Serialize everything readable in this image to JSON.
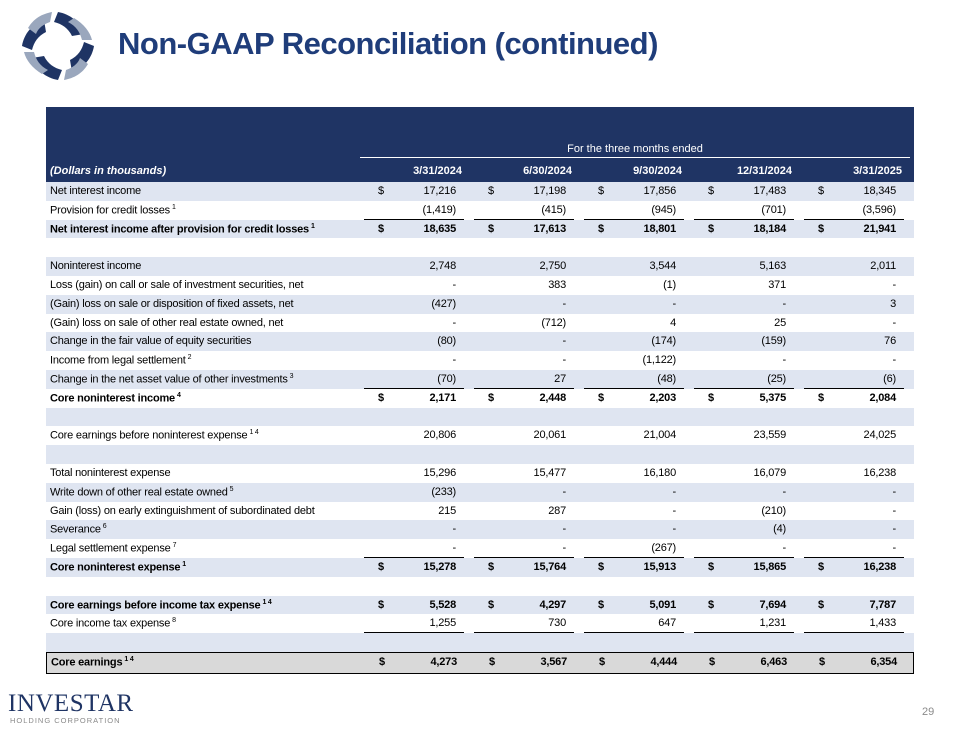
{
  "header": {
    "title": "Non-GAAP Reconciliation (continued)"
  },
  "table": {
    "period_header": "For the three months ended",
    "unit_label": "(Dollars in thousands)",
    "columns": [
      "3/31/2024",
      "6/30/2024",
      "9/30/2024",
      "12/31/2024",
      "3/31/2025"
    ],
    "sections": [
      {
        "rows": [
          {
            "label": "Net interest income",
            "currency": "$",
            "values": [
              "17,216",
              "17,198",
              "17,856",
              "17,483",
              "18,345"
            ]
          },
          {
            "label": "Provision for credit losses",
            "note": "1",
            "values": [
              "(1,419)",
              "(415)",
              "(945)",
              "(701)",
              "(3,596)"
            ]
          },
          {
            "label": "Net interest income after provision for credit losses",
            "note": "1",
            "bold": true,
            "currency": "$",
            "values": [
              "18,635",
              "17,613",
              "18,801",
              "18,184",
              "21,941"
            ]
          }
        ]
      },
      {
        "rows": [
          {
            "label": "Noninterest income",
            "values": [
              "2,748",
              "2,750",
              "3,544",
              "5,163",
              "2,011"
            ]
          },
          {
            "label": "Loss (gain) on call or sale of investment securities, net",
            "values": [
              "-",
              "383",
              "(1)",
              "371",
              "-"
            ]
          },
          {
            "label": "(Gain) loss on sale or disposition of fixed assets, net",
            "values": [
              "(427)",
              "-",
              "-",
              "-",
              "3"
            ]
          },
          {
            "label": "(Gain) loss on sale of other real estate owned, net",
            "values": [
              "-",
              "(712)",
              "4",
              "25",
              "-"
            ]
          },
          {
            "label": "Change in the fair value of equity securities",
            "values": [
              "(80)",
              "-",
              "(174)",
              "(159)",
              "76"
            ]
          },
          {
            "label": "Income from legal settlement",
            "note": "2",
            "values": [
              "-",
              "-",
              "(1,122)",
              "-",
              "-"
            ]
          },
          {
            "label": "Change in the net asset value of other investments",
            "note": "3",
            "values": [
              "(70)",
              "27",
              "(48)",
              "(25)",
              "(6)"
            ]
          },
          {
            "label": "Core noninterest income",
            "note": "4",
            "bold": true,
            "currency": "$",
            "values": [
              "2,171",
              "2,448",
              "2,203",
              "5,375",
              "2,084"
            ]
          }
        ]
      },
      {
        "rows": [
          {
            "label": "Core earnings before noninterest expense",
            "note": "1 4",
            "values": [
              "20,806",
              "20,061",
              "21,004",
              "23,559",
              "24,025"
            ]
          }
        ]
      },
      {
        "rows": [
          {
            "label": "Total noninterest expense",
            "values": [
              "15,296",
              "15,477",
              "16,180",
              "16,079",
              "16,238"
            ]
          },
          {
            "label": "Write down of other real estate owned",
            "note": "5",
            "values": [
              "(233)",
              "-",
              "-",
              "-",
              "-"
            ]
          },
          {
            "label": "Gain (loss) on early extinguishment of subordinated debt",
            "values": [
              "215",
              "287",
              "-",
              "(210)",
              "-"
            ]
          },
          {
            "label": "Severance",
            "note": "6",
            "values": [
              "-",
              "-",
              "-",
              "(4)",
              "-"
            ]
          },
          {
            "label": "Legal settlement expense",
            "note": "7",
            "values": [
              "-",
              "-",
              "(267)",
              "-",
              "-"
            ]
          },
          {
            "label": "Core noninterest expense",
            "note": "1",
            "bold": true,
            "currency": "$",
            "values": [
              "15,278",
              "15,764",
              "15,913",
              "15,865",
              "16,238"
            ]
          }
        ]
      },
      {
        "rows": [
          {
            "label": "Core earnings before income tax expense",
            "note": "1 4",
            "bold": true,
            "currency": "$",
            "values": [
              "5,528",
              "4,297",
              "5,091",
              "7,694",
              "7,787"
            ]
          },
          {
            "label": "Core income tax expense",
            "note": "8",
            "values": [
              "1,255",
              "730",
              "647",
              "1,231",
              "1,433"
            ]
          }
        ]
      },
      {
        "boxed": true,
        "rows": [
          {
            "label": "Core earnings",
            "note": "1 4",
            "bold": true,
            "currency": "$",
            "values": [
              "4,273",
              "3,567",
              "4,444",
              "6,463",
              "6,354"
            ]
          }
        ]
      }
    ]
  },
  "footer": {
    "logo_name": "INVESTAR",
    "logo_sub": "HOLDING CORPORATION",
    "page_number": "29"
  }
}
